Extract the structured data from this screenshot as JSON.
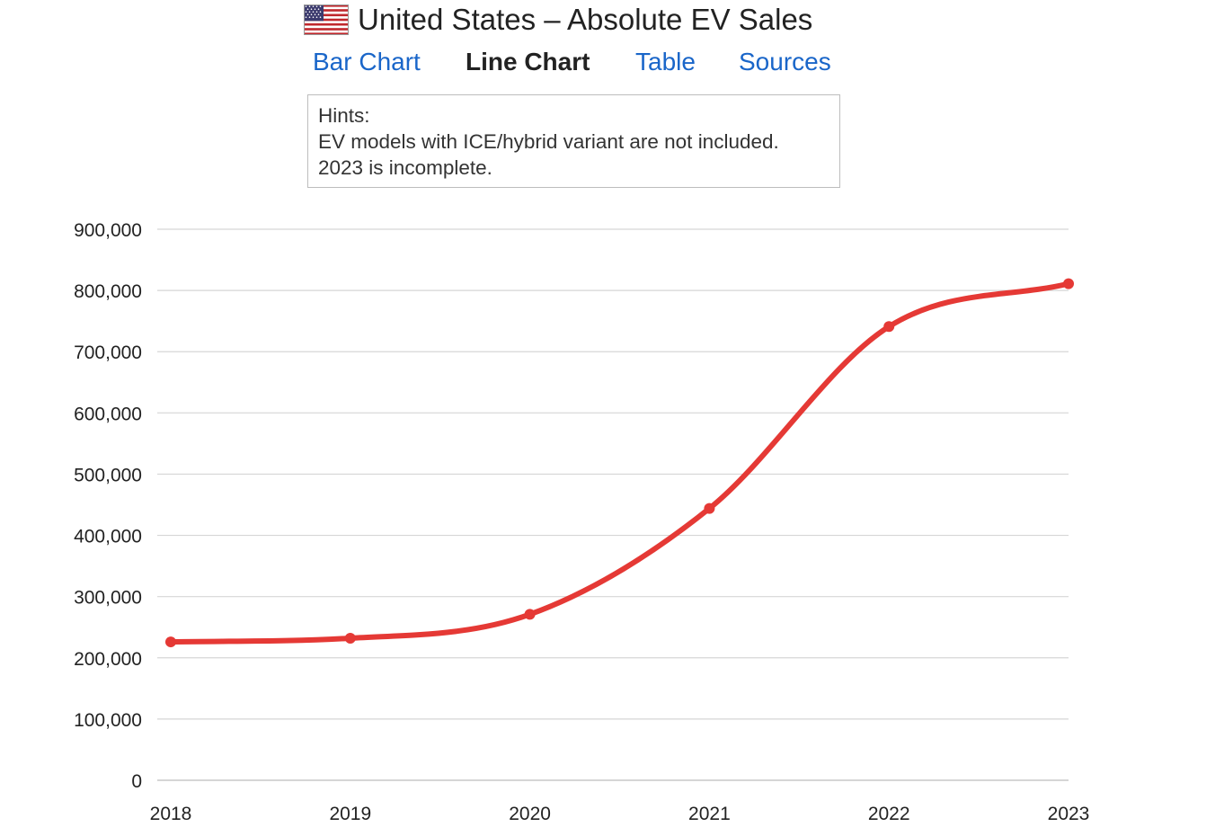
{
  "header": {
    "flag_icon": "us-flag-icon",
    "title": "United States – Absolute EV Sales"
  },
  "tabs": [
    {
      "label": "Bar Chart",
      "active": false
    },
    {
      "label": "Line Chart",
      "active": true
    },
    {
      "label": "Table",
      "active": false
    },
    {
      "label": "Sources",
      "active": false
    }
  ],
  "hints": {
    "heading": "Hints:",
    "lines": [
      "EV models with ICE/hybrid variant are not included.",
      "2023 is incomplete."
    ]
  },
  "colors": {
    "line": "#e53935",
    "grid": "#d6d6d6",
    "link": "#1a66c9",
    "text": "#222222"
  },
  "chart_data": {
    "type": "line",
    "title": "",
    "xlabel": "",
    "ylabel": "",
    "categories": [
      "2018",
      "2019",
      "2020",
      "2021",
      "2022",
      "2023"
    ],
    "series": [
      {
        "values": [
          226000,
          232000,
          271000,
          444000,
          741000,
          811000
        ]
      }
    ],
    "ylim": [
      0,
      900000
    ],
    "yticks": [
      "0",
      "100,000",
      "200,000",
      "300,000",
      "400,000",
      "500,000",
      "600,000",
      "700,000",
      "800,000",
      "900,000"
    ],
    "grid": true,
    "legend": "none",
    "smooth": true
  }
}
